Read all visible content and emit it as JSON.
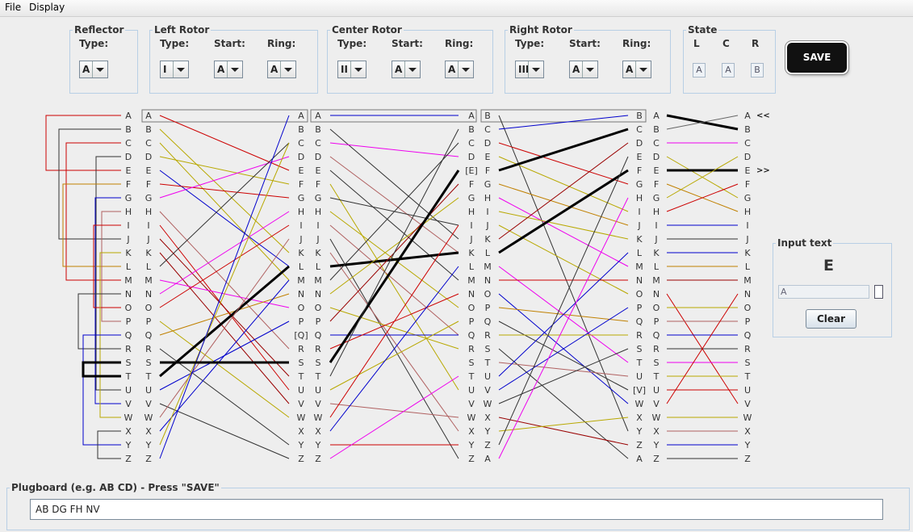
{
  "menu": [
    "File",
    "Display"
  ],
  "groups": {
    "reflector": {
      "title": "Reflector",
      "type_label": "Type:",
      "type": "A"
    },
    "left": {
      "title": "Left Rotor",
      "type_label": "Type:",
      "start_label": "Start:",
      "ring_label": "Ring:",
      "type": "I",
      "start": "A",
      "ring": "A"
    },
    "center": {
      "title": "Center Rotor",
      "type_label": "Type:",
      "start_label": "Start:",
      "ring_label": "Ring:",
      "type": "II",
      "start": "A",
      "ring": "A"
    },
    "right": {
      "title": "Right Rotor",
      "type_label": "Type:",
      "start_label": "Start:",
      "ring_label": "Ring:",
      "type": "III",
      "start": "A",
      "ring": "A"
    },
    "state": {
      "title": "State",
      "labels": [
        "L",
        "C",
        "R"
      ],
      "values": [
        "A",
        "A",
        "B"
      ]
    }
  },
  "save_label": "SAVE",
  "columns": {
    "c1": [
      "A",
      "B",
      "C",
      "D",
      "E",
      "F",
      "G",
      "H",
      "I",
      "J",
      "K",
      "L",
      "M",
      "N",
      "O",
      "P",
      "Q",
      "R",
      "S",
      "T",
      "U",
      "V",
      "W",
      "X",
      "Y",
      "Z"
    ],
    "c2": [
      "A",
      "B",
      "C",
      "D",
      "E",
      "F",
      "G",
      "H",
      "I",
      "J",
      "K",
      "L",
      "M",
      "N",
      "O",
      "P",
      "Q",
      "R",
      "S",
      "T",
      "U",
      "V",
      "W",
      "X",
      "Y",
      "Z"
    ],
    "c3": [
      "A",
      "B",
      "C",
      "D",
      "E",
      "F",
      "G",
      "H",
      "I",
      "J",
      "K",
      "L",
      "M",
      "N",
      "O",
      "P",
      "[Q]",
      "R",
      "S",
      "T",
      "U",
      "V",
      "W",
      "X",
      "Y",
      "Z"
    ],
    "c4": [
      "A",
      "B",
      "C",
      "D",
      "E",
      "F",
      "G",
      "H",
      "I",
      "J",
      "K",
      "L",
      "M",
      "N",
      "O",
      "P",
      "Q",
      "R",
      "S",
      "T",
      "U",
      "V",
      "W",
      "X",
      "Y",
      "Z"
    ],
    "c5": [
      "A",
      "B",
      "C",
      "D",
      "[E]",
      "F",
      "G",
      "H",
      "I",
      "J",
      "K",
      "L",
      "M",
      "N",
      "O",
      "P",
      "Q",
      "R",
      "S",
      "T",
      "U",
      "V",
      "W",
      "X",
      "Y",
      "Z"
    ],
    "c6": [
      "B",
      "C",
      "D",
      "E",
      "F",
      "G",
      "H",
      "I",
      "J",
      "K",
      "L",
      "M",
      "N",
      "O",
      "P",
      "Q",
      "R",
      "S",
      "T",
      "U",
      "V",
      "W",
      "X",
      "Y",
      "Z",
      "A"
    ],
    "c7": [
      "B",
      "C",
      "D",
      "E",
      "F",
      "G",
      "H",
      "I",
      "J",
      "K",
      "L",
      "M",
      "N",
      "O",
      "P",
      "Q",
      "R",
      "S",
      "T",
      "U",
      "[V]",
      "W",
      "X",
      "Y",
      "Z",
      "A"
    ],
    "c8": [
      "A",
      "B",
      "C",
      "D",
      "E",
      "F",
      "G",
      "H",
      "I",
      "J",
      "K",
      "L",
      "M",
      "N",
      "O",
      "P",
      "Q",
      "R",
      "S",
      "T",
      "U",
      "V",
      "W",
      "X",
      "Y",
      "Z"
    ],
    "c9": [
      "A",
      "B",
      "C",
      "D",
      "E",
      "F",
      "G",
      "H",
      "I",
      "J",
      "K",
      "L",
      "M",
      "N",
      "O",
      "P",
      "Q",
      "R",
      "S",
      "T",
      "U",
      "V",
      "W",
      "X",
      "Y",
      "Z"
    ]
  },
  "markers": {
    "in": "<<",
    "out": ">>"
  },
  "input_panel": {
    "title": "Input text",
    "output_letter": "E",
    "input_value": "A",
    "clear_label": "Clear"
  },
  "plugboard": {
    "title": "Plugboard (e.g. AB CD) - Press \"SAVE\"",
    "value": "AB DG FH NV"
  },
  "colors": {
    "red": "#cc0000",
    "olive": "#b8a800",
    "blue": "#0000cc",
    "magenta": "#ee00ee",
    "darkred": "#990000",
    "rose": "#b06060",
    "black": "#000000",
    "dark": "#333333",
    "orange": "#c08000",
    "gray": "#666666"
  }
}
